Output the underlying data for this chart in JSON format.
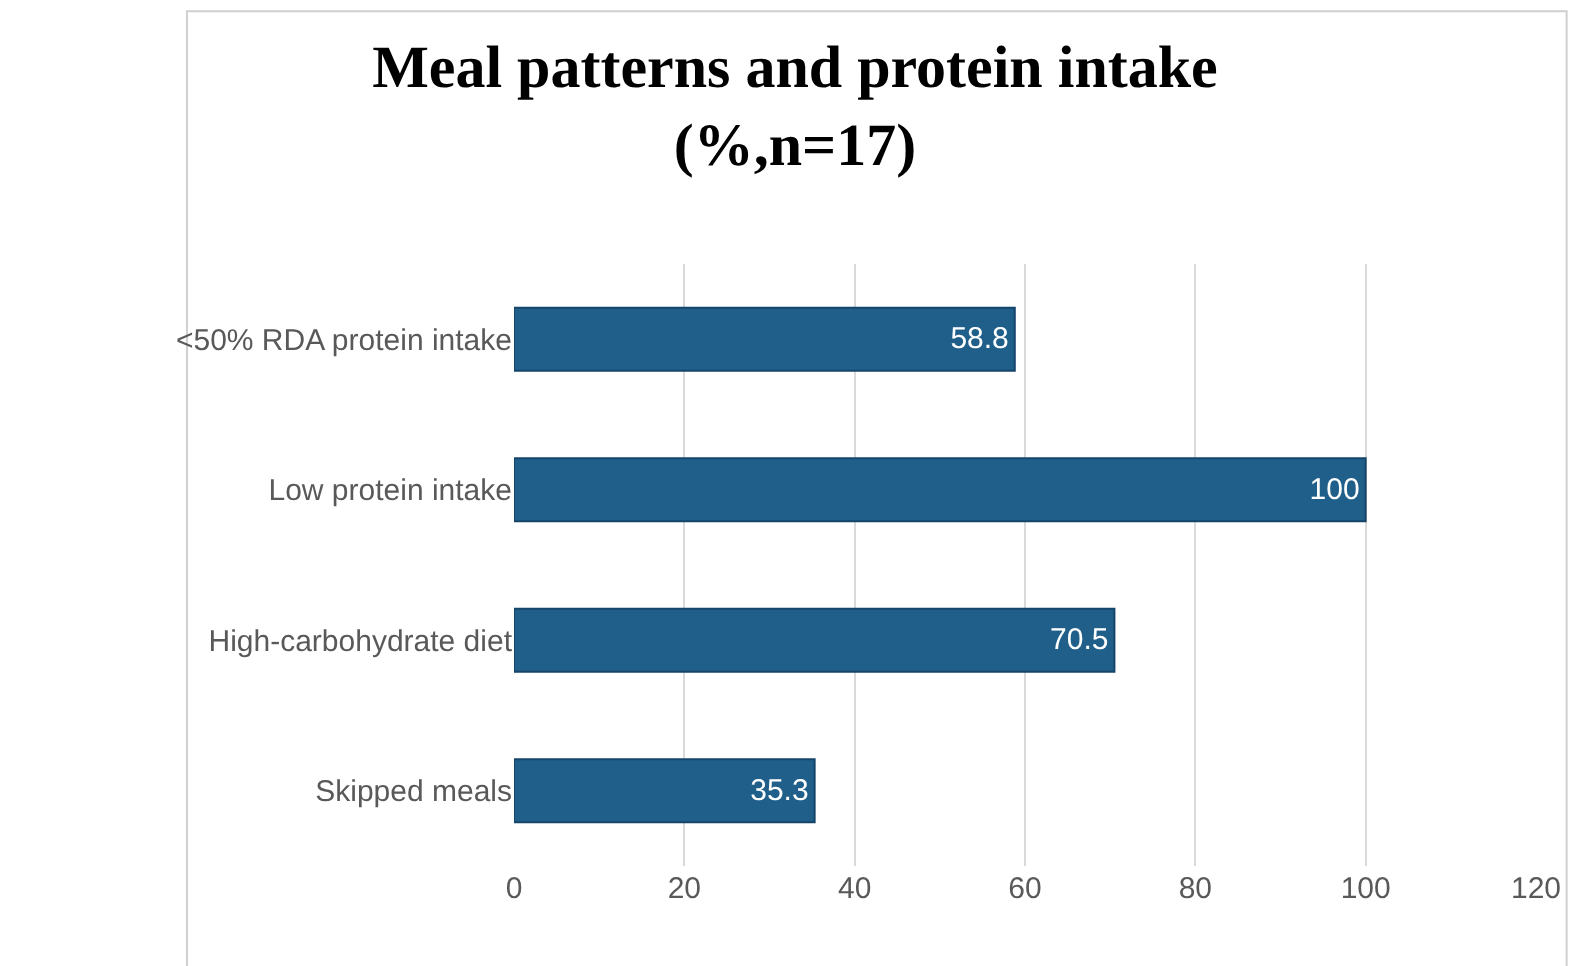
{
  "chart_data": {
    "type": "bar",
    "orientation": "horizontal",
    "title": "Meal patterns and protein intake\n(%,n=17)",
    "categories": [
      "<50% RDA protein intake",
      "Low protein intake",
      "High-carbohydrate diet",
      "Skipped meals"
    ],
    "values": [
      58.8,
      100,
      70.5,
      35.3
    ],
    "color": "#1f5f8a",
    "xlim": [
      0,
      120
    ],
    "xticks": [
      0,
      20,
      40,
      60,
      80,
      100,
      120
    ],
    "grid": "x",
    "data_labels": true
  }
}
